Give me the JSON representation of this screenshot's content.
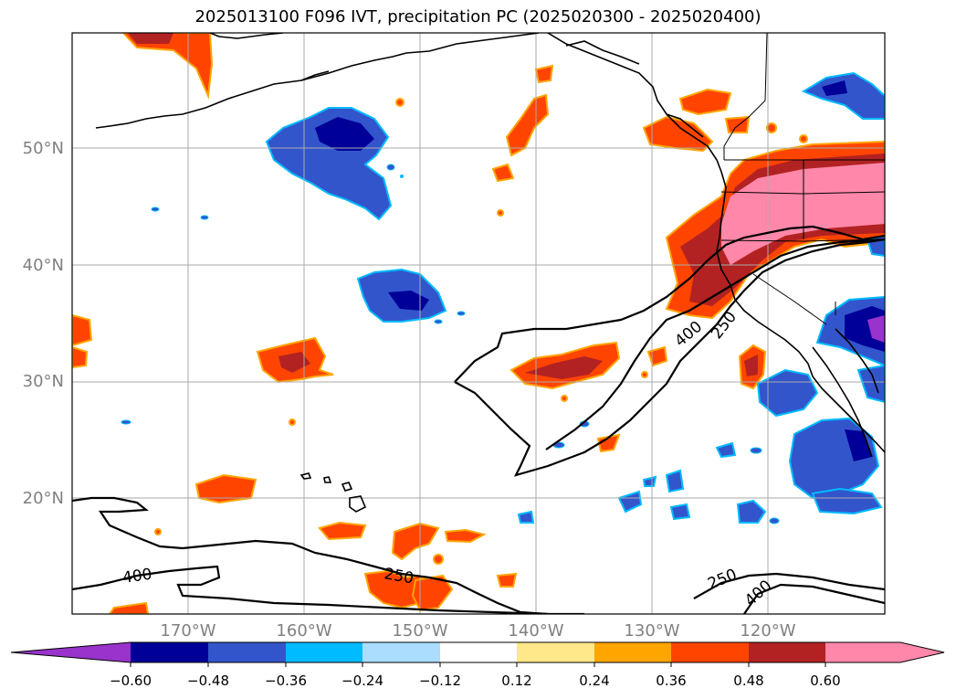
{
  "title": "2025013100 F096 IVT, precipitation PC (2025020300 - 2025020400)",
  "axes": {
    "lat_ticks": [
      "50°N",
      "40°N",
      "30°N",
      "20°N"
    ],
    "lon_ticks": [
      "170°W",
      "160°W",
      "150°W",
      "140°W",
      "130°W",
      "120°W"
    ]
  },
  "contour_labels": [
    "400",
    "250",
    "400",
    "250",
    "250",
    "400"
  ],
  "colorbar": {
    "ticks": [
      "−0.60",
      "−0.48",
      "−0.36",
      "−0.24",
      "−0.12",
      "0.12",
      "0.24",
      "0.36",
      "0.48",
      "0.60"
    ],
    "colors": [
      "#9933cc",
      "#000099",
      "#3355cc",
      "#00bbff",
      "#aaddff",
      "#ffffff",
      "#ffe88a",
      "#ffa500",
      "#ff4400",
      "#b22222",
      "#ff88aa"
    ]
  },
  "colors": {
    "coast": "#000000",
    "grid": "#aaaaaa",
    "ivt_contour": "#000000"
  }
}
